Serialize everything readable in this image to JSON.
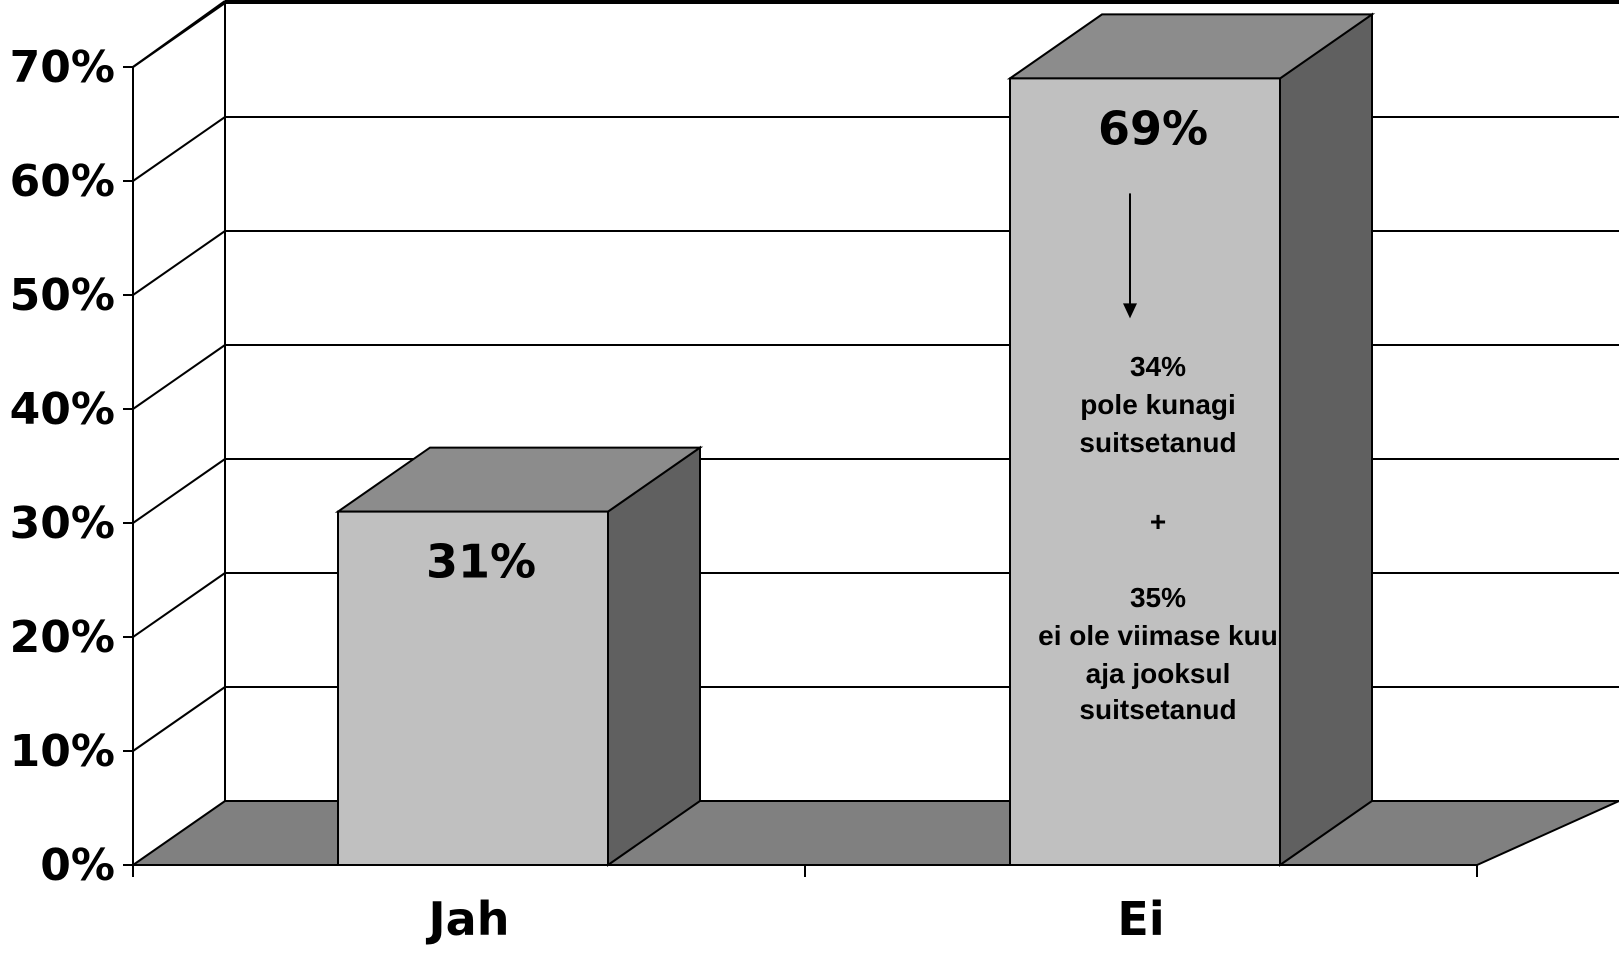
{
  "chart_data": {
    "type": "bar",
    "categories": [
      "Jah",
      "Ei"
    ],
    "values": [
      31,
      69
    ],
    "value_labels": [
      "31%",
      "69%"
    ],
    "ylim": [
      0,
      70
    ],
    "yticks": [
      "0%",
      "10%",
      "20%",
      "30%",
      "40%",
      "50%",
      "60%",
      "70%"
    ],
    "grid": true,
    "style": "3d",
    "annotation": {
      "category": "Ei",
      "lines": [
        "34%",
        "pole kunagi",
        "suitsetanud",
        "+",
        "35%",
        "ei ole viimase kuu",
        "aja jooksul",
        "suitsetanud"
      ]
    },
    "colors": {
      "bar_front": "#c0c0c0",
      "bar_top": "#8c8c8c",
      "bar_side": "#606060",
      "floor": "#808080"
    }
  }
}
